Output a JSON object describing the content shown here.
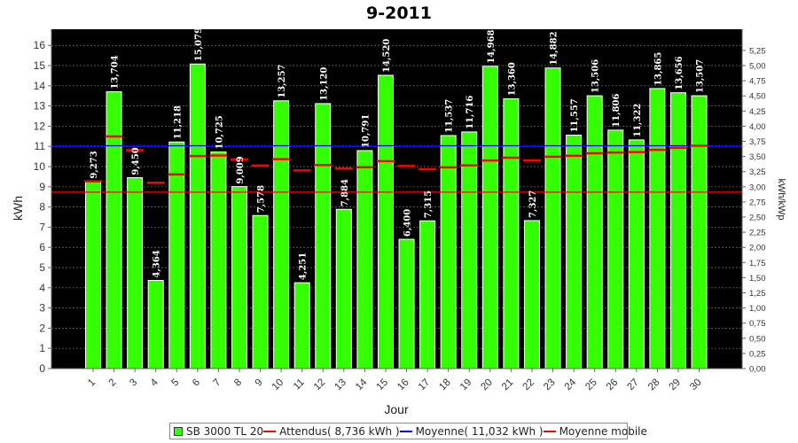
{
  "chart_data": {
    "type": "bar",
    "title": "9-2011",
    "xlabel": "Jour",
    "ylabel": "kWh",
    "y2label": "kWh/kWp",
    "ylim": [
      0,
      16.8
    ],
    "y2lim": [
      0,
      5.6
    ],
    "yticks": [
      "0",
      "1",
      "2",
      "3",
      "4",
      "5",
      "6",
      "7",
      "8",
      "9",
      "10",
      "11",
      "12",
      "13",
      "14",
      "15",
      "16"
    ],
    "y2ticks": [
      "0,00",
      "0,25",
      "0,50",
      "0,75",
      "1,00",
      "1,25",
      "1,50",
      "1,75",
      "2,00",
      "2,25",
      "2,50",
      "2,75",
      "3,00",
      "3,25",
      "3,50",
      "3,75",
      "4,00",
      "4,25",
      "4,50",
      "4,75",
      "5,00",
      "5,25"
    ],
    "categories": [
      "1",
      "2",
      "3",
      "4",
      "5",
      "6",
      "7",
      "8",
      "9",
      "10",
      "11",
      "12",
      "13",
      "14",
      "15",
      "16",
      "17",
      "18",
      "19",
      "20",
      "21",
      "22",
      "23",
      "24",
      "25",
      "26",
      "27",
      "28",
      "29",
      "30"
    ],
    "series": [
      {
        "name": "SB 3000 TL 20",
        "color": "#33ff00",
        "values": [
          9.273,
          13.704,
          9.45,
          4.364,
          11.218,
          15.079,
          10.725,
          9.009,
          7.578,
          13.257,
          4.251,
          13.12,
          7.884,
          10.791,
          14.52,
          6.4,
          7.315,
          11.537,
          11.716,
          14.968,
          13.36,
          7.327,
          14.882,
          11.557,
          13.506,
          11.806,
          11.322,
          13.865,
          13.656,
          13.507
        ],
        "labels": [
          "9,273",
          "13,704",
          "9,450",
          "4,364",
          "11,218",
          "15,079",
          "10,725",
          "9,009",
          "7,578",
          "13,257",
          "4,251",
          "13,120",
          "7,884",
          "10,791",
          "14,520",
          "6,400",
          "7,315",
          "11,537",
          "11,716",
          "14,968",
          "13,360",
          "7,327",
          "14,882",
          "11,557",
          "13,506",
          "11,806",
          "11,322",
          "13,865",
          "13,656",
          "13,507"
        ]
      },
      {
        "name": "Moyenne mobile",
        "color": "#ff0000",
        "values": [
          9.27,
          11.49,
          10.81,
          9.2,
          9.61,
          10.52,
          10.55,
          10.36,
          10.05,
          10.37,
          9.81,
          10.08,
          9.91,
          9.97,
          10.27,
          10.03,
          9.87,
          9.96,
          10.06,
          10.3,
          10.44,
          10.3,
          10.49,
          10.54,
          10.66,
          10.7,
          10.72,
          10.83,
          10.93,
          11.03
        ]
      }
    ],
    "expected": {
      "label": "Attendus( 8,736 kWh )",
      "value": 8.736,
      "color": "#ff0000"
    },
    "average": {
      "label": "Moyenne( 11,032 kWh )",
      "value": 11.032,
      "color": "#0000ff"
    },
    "grid": true,
    "legend_position": "bottom"
  },
  "legend": {
    "items": [
      {
        "label": "SB 3000 TL 20",
        "kind": "box",
        "color": "#33ff00"
      },
      {
        "label": "Attendus( 8,736 kWh )",
        "kind": "line",
        "color": "#ff0000"
      },
      {
        "label": "Moyenne( 11,032 kWh )",
        "kind": "line",
        "color": "#0000ff"
      },
      {
        "label": "Moyenne mobile",
        "kind": "line",
        "color": "#ff0000"
      }
    ]
  }
}
